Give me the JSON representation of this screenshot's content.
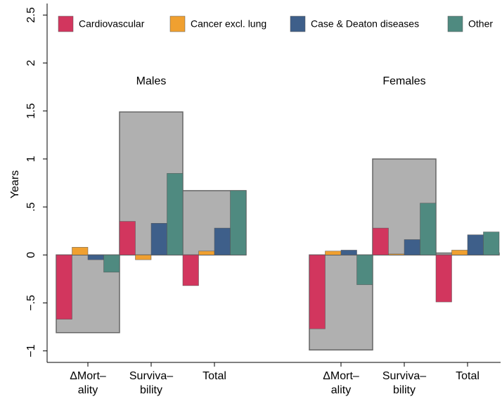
{
  "chart_data": {
    "type": "bar",
    "ylabel": "Years",
    "ylim": [
      -1.12,
      2.62
    ],
    "yticks": [
      {
        "value": -1,
        "label": "−1"
      },
      {
        "value": -0.5,
        "label": "−.5"
      },
      0,
      {
        "value": 0.5,
        "label": ".5"
      },
      1,
      1.5,
      2,
      2.5
    ],
    "series": [
      {
        "name": "Cardiovascular",
        "color": "#d2365e"
      },
      {
        "name": "Cancer excl. lung",
        "color": "#f0a030"
      },
      {
        "name": "Case & Deaton diseases",
        "color": "#3e5f8a"
      },
      {
        "name": "Other",
        "color": "#4f8a80"
      }
    ],
    "total_color": "#b0b0b0",
    "panels": [
      {
        "title": "Males",
        "categories": [
          [
            "ΔMort–",
            "ality"
          ],
          [
            "Surviva–",
            "bility"
          ],
          [
            "Total"
          ]
        ],
        "totals": [
          -0.81,
          1.49,
          0.67
        ],
        "values": [
          [
            -0.67,
            0.35,
            -0.32
          ],
          [
            0.08,
            -0.05,
            0.04
          ],
          [
            -0.05,
            0.33,
            0.28
          ],
          [
            -0.18,
            0.85,
            0.67
          ]
        ]
      },
      {
        "title": "Females",
        "categories": [
          [
            "ΔMort–",
            "ality"
          ],
          [
            "Surviva–",
            "bility"
          ],
          [
            "Total"
          ]
        ],
        "totals": [
          -0.99,
          1.0,
          0.02
        ],
        "values": [
          [
            -0.77,
            0.28,
            -0.49
          ],
          [
            0.04,
            0.01,
            0.05
          ],
          [
            0.05,
            0.16,
            0.21
          ],
          [
            -0.31,
            0.54,
            0.24
          ]
        ]
      }
    ]
  }
}
